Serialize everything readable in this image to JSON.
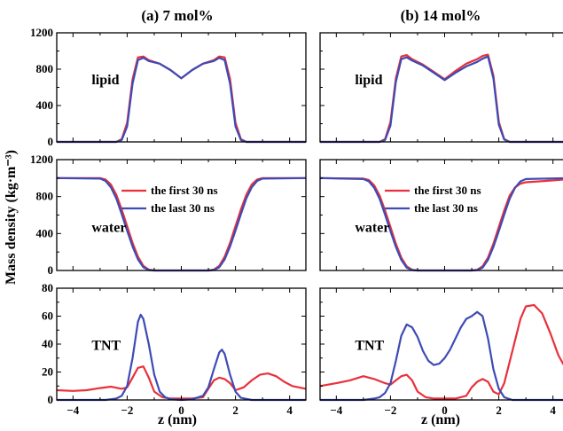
{
  "figure": {
    "column_titles": [
      "(a) 7 mol%",
      "(b) 14 mol%"
    ],
    "ylabel": "Mass density (kg·m⁻³)",
    "xlabel": "z (nm)",
    "colors": {
      "first": "#e8303a",
      "last": "#3d4bb5"
    }
  },
  "chart_data": [
    {
      "type": "line",
      "column": 0,
      "row": 0,
      "panel_label": "lipid",
      "xlim": [
        -4.6,
        4.6
      ],
      "ylim": [
        0,
        1200
      ],
      "xticks": [
        -4,
        -2,
        0,
        2,
        4
      ],
      "yticks": [
        0,
        400,
        800,
        1200
      ],
      "series": [
        {
          "name": "",
          "color": "#e8303a",
          "x": [
            -4.6,
            -2.4,
            -2.2,
            -2.0,
            -1.8,
            -1.6,
            -1.4,
            -1.2,
            -0.8,
            -0.4,
            0,
            0.4,
            0.8,
            1.2,
            1.4,
            1.6,
            1.8,
            2.0,
            2.2,
            2.4,
            4.6
          ],
          "values": [
            0,
            0,
            30,
            210,
            690,
            930,
            940,
            900,
            860,
            790,
            700,
            790,
            860,
            900,
            940,
            930,
            690,
            210,
            30,
            0,
            0
          ]
        },
        {
          "name": "",
          "color": "#3d4bb5",
          "x": [
            -4.6,
            -2.4,
            -2.2,
            -2.0,
            -1.8,
            -1.6,
            -1.4,
            -1.2,
            -0.8,
            -0.4,
            0,
            0.4,
            0.8,
            1.2,
            1.4,
            1.6,
            1.8,
            2.0,
            2.2,
            2.4,
            4.6
          ],
          "values": [
            0,
            0,
            20,
            170,
            640,
            900,
            925,
            890,
            860,
            790,
            700,
            790,
            860,
            890,
            925,
            900,
            640,
            170,
            20,
            0,
            0
          ]
        }
      ]
    },
    {
      "type": "line",
      "column": 1,
      "row": 0,
      "panel_label": "lipid",
      "xlim": [
        -4.6,
        4.6
      ],
      "ylim": [
        0,
        1200
      ],
      "xticks": [
        -4,
        -2,
        0,
        2,
        4
      ],
      "yticks": [
        0,
        400,
        800,
        1200
      ],
      "series": [
        {
          "name": "",
          "color": "#e8303a",
          "x": [
            -4.6,
            -2.4,
            -2.2,
            -2.0,
            -1.8,
            -1.6,
            -1.4,
            -1.2,
            -0.8,
            -0.4,
            0,
            0.4,
            0.8,
            1.2,
            1.4,
            1.6,
            1.8,
            2.0,
            2.2,
            2.4,
            4.6
          ],
          "values": [
            0,
            0,
            30,
            220,
            700,
            940,
            955,
            910,
            850,
            770,
            690,
            780,
            860,
            910,
            945,
            960,
            730,
            220,
            30,
            0,
            0
          ]
        },
        {
          "name": "",
          "color": "#3d4bb5",
          "x": [
            -4.6,
            -2.4,
            -2.2,
            -2.0,
            -1.8,
            -1.6,
            -1.4,
            -1.2,
            -0.8,
            -0.4,
            0,
            0.4,
            0.8,
            1.2,
            1.4,
            1.6,
            1.8,
            2.0,
            2.2,
            2.4,
            4.6
          ],
          "values": [
            0,
            0,
            20,
            180,
            660,
            910,
            930,
            895,
            840,
            760,
            680,
            760,
            830,
            880,
            915,
            940,
            700,
            190,
            25,
            0,
            0
          ]
        }
      ]
    },
    {
      "type": "line",
      "column": 0,
      "row": 1,
      "panel_label": "water",
      "xlim": [
        -4.6,
        4.6
      ],
      "ylim": [
        0,
        1200
      ],
      "xticks": [
        -4,
        -2,
        0,
        2,
        4
      ],
      "yticks": [
        0,
        400,
        800,
        1200
      ],
      "series": [
        {
          "name": "the first 30 ns",
          "color": "#e8303a",
          "x": [
            -4.6,
            -3.0,
            -2.8,
            -2.6,
            -2.4,
            -2.2,
            -2.0,
            -1.8,
            -1.6,
            -1.4,
            -1.2,
            -1.0,
            1.0,
            1.2,
            1.4,
            1.6,
            1.8,
            2.0,
            2.2,
            2.4,
            2.6,
            2.8,
            3.0,
            4.6
          ],
          "values": [
            1000,
            1000,
            985,
            930,
            820,
            660,
            480,
            300,
            150,
            50,
            10,
            0,
            0,
            10,
            50,
            150,
            300,
            480,
            660,
            820,
            930,
            985,
            1000,
            1000
          ]
        },
        {
          "name": "the last 30 ns",
          "color": "#3d4bb5",
          "x": [
            -4.6,
            -3.0,
            -2.8,
            -2.6,
            -2.4,
            -2.2,
            -2.0,
            -1.8,
            -1.6,
            -1.4,
            -1.2,
            -1.0,
            1.0,
            1.2,
            1.4,
            1.6,
            1.8,
            2.0,
            2.2,
            2.4,
            2.6,
            2.8,
            3.0,
            4.6
          ],
          "values": [
            1000,
            995,
            970,
            900,
            780,
            610,
            430,
            260,
            120,
            35,
            5,
            0,
            0,
            5,
            35,
            120,
            260,
            430,
            610,
            780,
            900,
            970,
            995,
            1000
          ]
        }
      ]
    },
    {
      "type": "line",
      "column": 1,
      "row": 1,
      "panel_label": "water",
      "xlim": [
        -4.6,
        4.6
      ],
      "ylim": [
        0,
        1200
      ],
      "xticks": [
        -4,
        -2,
        0,
        2,
        4
      ],
      "yticks": [
        0,
        400,
        800,
        1200
      ],
      "series": [
        {
          "name": "the first 30 ns",
          "color": "#e8303a",
          "x": [
            -4.6,
            -3.0,
            -2.8,
            -2.6,
            -2.4,
            -2.2,
            -2.0,
            -1.8,
            -1.6,
            -1.4,
            -1.2,
            -1.0,
            1.0,
            1.2,
            1.4,
            1.6,
            1.8,
            2.0,
            2.2,
            2.4,
            2.6,
            2.8,
            3.0,
            3.5,
            4.0,
            4.6
          ],
          "values": [
            1000,
            995,
            980,
            920,
            810,
            650,
            470,
            290,
            140,
            45,
            8,
            0,
            0,
            8,
            45,
            140,
            290,
            470,
            650,
            810,
            900,
            940,
            955,
            965,
            975,
            990
          ]
        },
        {
          "name": "the last 30 ns",
          "color": "#3d4bb5",
          "x": [
            -4.6,
            -3.0,
            -2.8,
            -2.6,
            -2.4,
            -2.2,
            -2.0,
            -1.8,
            -1.6,
            -1.4,
            -1.2,
            -1.0,
            1.0,
            1.2,
            1.4,
            1.6,
            1.8,
            2.0,
            2.2,
            2.4,
            2.6,
            2.8,
            3.0,
            4.6
          ],
          "values": [
            1000,
            990,
            965,
            895,
            775,
            605,
            425,
            255,
            115,
            30,
            5,
            0,
            0,
            5,
            30,
            115,
            255,
            425,
            605,
            775,
            895,
            965,
            990,
            1000
          ]
        }
      ]
    },
    {
      "type": "line",
      "column": 0,
      "row": 2,
      "panel_label": "TNT",
      "xlim": [
        -4.6,
        4.6
      ],
      "ylim": [
        0,
        80
      ],
      "xticks": [
        -4,
        -2,
        0,
        2,
        4
      ],
      "yticks": [
        0,
        20,
        40,
        60,
        80
      ],
      "series": [
        {
          "name": "",
          "color": "#e8303a",
          "x": [
            -4.6,
            -4.0,
            -3.5,
            -3.0,
            -2.6,
            -2.2,
            -2.0,
            -1.8,
            -1.6,
            -1.4,
            -1.2,
            -1.0,
            -0.7,
            -0.4,
            0,
            0.4,
            0.8,
            1.0,
            1.2,
            1.4,
            1.6,
            1.8,
            2.0,
            2.3,
            2.6,
            2.9,
            3.2,
            3.5,
            3.8,
            4.1,
            4.6
          ],
          "values": [
            7,
            6.5,
            7,
            8.5,
            9.5,
            8,
            9,
            16,
            23,
            24,
            16,
            6,
            2,
            1,
            1,
            1,
            2,
            8,
            14,
            16,
            15,
            12,
            7,
            9,
            14,
            18,
            19,
            17,
            13,
            10,
            8
          ]
        },
        {
          "name": "",
          "color": "#3d4bb5",
          "x": [
            -4.6,
            -2.8,
            -2.4,
            -2.2,
            -2.0,
            -1.8,
            -1.6,
            -1.5,
            -1.4,
            -1.2,
            -1.0,
            -0.8,
            -0.6,
            -0.4,
            0,
            0.4,
            0.8,
            1.0,
            1.2,
            1.4,
            1.5,
            1.6,
            1.8,
            2.0,
            2.2,
            2.6,
            4.6
          ],
          "values": [
            0,
            0,
            1,
            3,
            10,
            30,
            56,
            61,
            58,
            40,
            18,
            6,
            2,
            0.5,
            0,
            0.5,
            3,
            9,
            22,
            34,
            36,
            33,
            18,
            6,
            1.5,
            0,
            0
          ]
        }
      ]
    },
    {
      "type": "line",
      "column": 1,
      "row": 2,
      "panel_label": "TNT",
      "xlim": [
        -4.6,
        4.6
      ],
      "ylim": [
        0,
        80
      ],
      "xticks": [
        -4,
        -2,
        0,
        2,
        4
      ],
      "yticks": [
        0,
        20,
        40,
        60,
        80
      ],
      "series": [
        {
          "name": "",
          "color": "#e8303a",
          "x": [
            -4.6,
            -4.0,
            -3.5,
            -3.0,
            -2.6,
            -2.2,
            -2.0,
            -1.8,
            -1.6,
            -1.4,
            -1.2,
            -1.0,
            -0.7,
            -0.4,
            0,
            0.4,
            0.8,
            1.0,
            1.2,
            1.4,
            1.6,
            1.8,
            2.0,
            2.2,
            2.5,
            2.8,
            3.0,
            3.3,
            3.6,
            3.9,
            4.2,
            4.6
          ],
          "values": [
            10,
            12,
            14,
            17,
            15,
            12,
            11,
            14,
            17,
            18,
            14,
            6,
            2,
            1,
            1,
            1,
            3,
            9,
            13,
            15,
            13,
            6,
            4,
            12,
            35,
            58,
            67,
            68,
            62,
            48,
            32,
            18
          ]
        },
        {
          "name": "",
          "color": "#3d4bb5",
          "x": [
            -4.6,
            -3.0,
            -2.6,
            -2.4,
            -2.2,
            -2.0,
            -1.8,
            -1.6,
            -1.4,
            -1.2,
            -1.0,
            -0.8,
            -0.6,
            -0.4,
            -0.2,
            0,
            0.2,
            0.4,
            0.6,
            0.8,
            1.0,
            1.2,
            1.4,
            1.6,
            1.8,
            2.0,
            2.2,
            2.5,
            4.6
          ],
          "values": [
            0,
            0,
            1,
            2,
            5,
            12,
            28,
            46,
            54,
            52,
            45,
            35,
            28,
            25,
            26,
            30,
            36,
            44,
            52,
            58,
            60,
            63,
            60,
            44,
            22,
            8,
            2,
            0,
            0
          ]
        }
      ]
    }
  ]
}
